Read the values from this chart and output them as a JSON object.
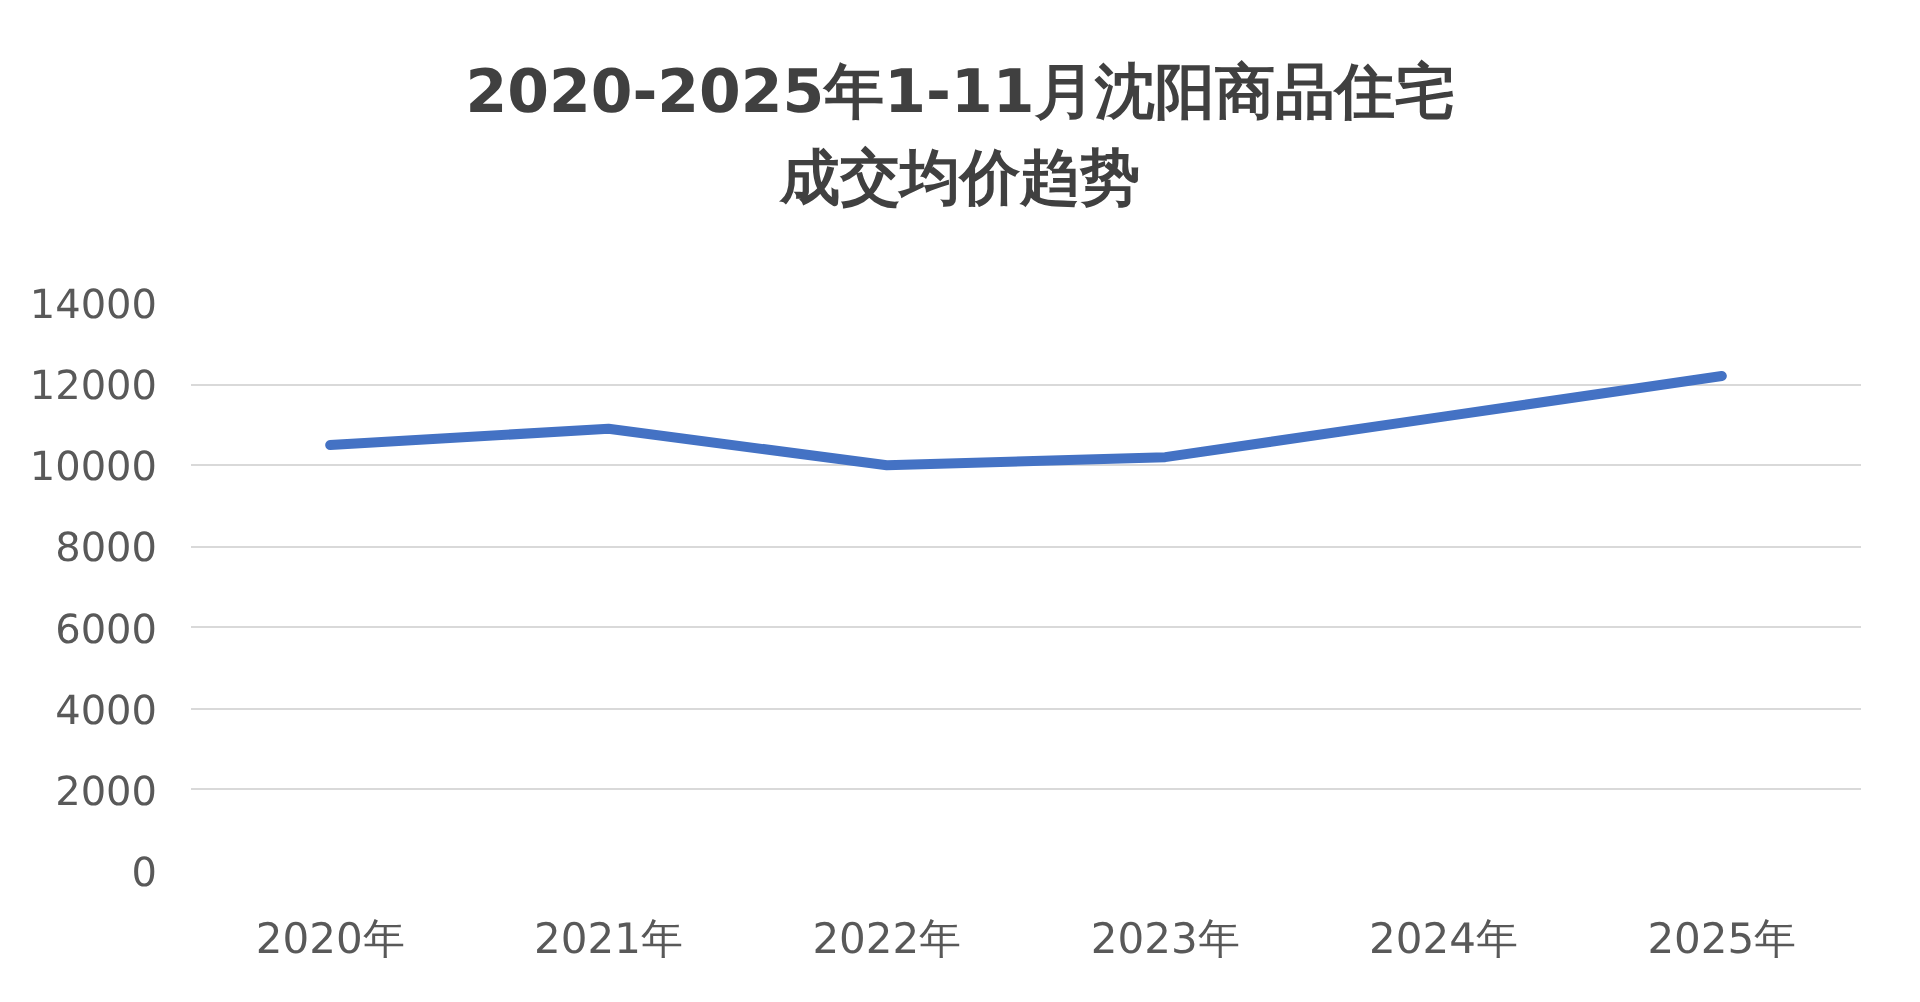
{
  "chart_data": {
    "type": "line",
    "title": "2020-2025年1-11月沈阳商品住宅成交均价趋势",
    "categories": [
      "2020年",
      "2021年",
      "2022年",
      "2023年",
      "2024年",
      "2025年"
    ],
    "series": [
      {
        "color": "#4472c4",
        "values": [
          10500,
          10900,
          10000,
          10200,
          11200,
          12200
        ]
      }
    ],
    "ylim": [
      0,
      14000
    ],
    "yticks": [
      0,
      2000,
      4000,
      6000,
      8000,
      10000,
      12000,
      14000
    ],
    "grid": "y",
    "marker": "none",
    "line_style": "solid"
  }
}
